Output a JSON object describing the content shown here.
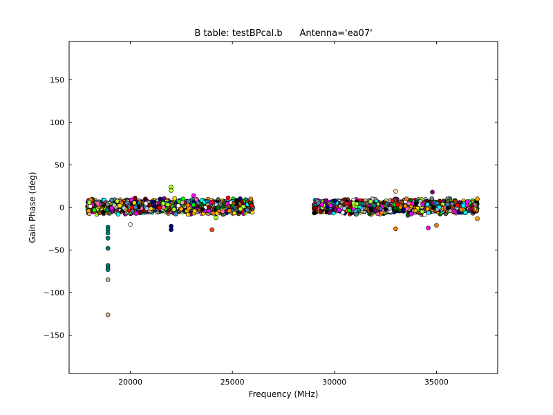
{
  "chart_data": {
    "type": "scatter",
    "title": "B table: testBPcal.b      Antenna='ea07'",
    "xlabel": "Frequency (MHz)",
    "ylabel": "Gain Phase (deg)",
    "xlim": [
      17000,
      38000
    ],
    "ylim": [
      -195,
      195
    ],
    "xticks": [
      20000,
      25000,
      30000,
      35000
    ],
    "xtick_labels": [
      "20000",
      "25000",
      "30000",
      "35000"
    ],
    "yticks": [
      150,
      100,
      50,
      0,
      -50,
      -100,
      -150
    ],
    "ytick_labels": [
      "150",
      "100",
      "50",
      "0",
      "−50",
      "−100",
      "−150"
    ],
    "grid": false,
    "legend": "none",
    "frequency_bands_mhz": [
      [
        17900,
        26000
      ],
      [
        29000,
        37000
      ]
    ],
    "typical_phase_range_deg": [
      -10,
      12
    ],
    "marker": "circle",
    "marker_edge_color": "#000000",
    "outlier_points": [
      {
        "x": 18900,
        "y": -23
      },
      {
        "x": 18900,
        "y": -26
      },
      {
        "x": 18900,
        "y": -30
      },
      {
        "x": 18900,
        "y": -36
      },
      {
        "x": 18900,
        "y": -48
      },
      {
        "x": 18900,
        "y": -68
      },
      {
        "x": 18900,
        "y": -71
      },
      {
        "x": 18900,
        "y": -73
      },
      {
        "x": 18900,
        "y": -85
      },
      {
        "x": 18900,
        "y": -126
      },
      {
        "x": 19400,
        "y": -8
      },
      {
        "x": 20000,
        "y": -20
      },
      {
        "x": 22000,
        "y": 24
      },
      {
        "x": 22000,
        "y": 20
      },
      {
        "x": 22000,
        "y": -26
      },
      {
        "x": 22000,
        "y": -22
      },
      {
        "x": 23100,
        "y": 14
      },
      {
        "x": 24000,
        "y": -26
      },
      {
        "x": 24200,
        "y": -12
      },
      {
        "x": 33000,
        "y": 19
      },
      {
        "x": 33000,
        "y": -25
      },
      {
        "x": 34600,
        "y": -24
      },
      {
        "x": 34800,
        "y": 18
      },
      {
        "x": 35000,
        "y": -21
      },
      {
        "x": 37000,
        "y": 10
      },
      {
        "x": 37000,
        "y": -13
      }
    ],
    "marker_colors": [
      "#008080",
      "#000080",
      "#ff00ff",
      "#00ff00",
      "#ff8000",
      "#d2b48c",
      "#8b4513",
      "#000000",
      "#ffffff",
      "#adff2f",
      "#800080",
      "#ff0000",
      "#4682b4",
      "#ffd700",
      "#00ffff",
      "#556b2f",
      "#ff69b4",
      "#8b0000",
      "#808080",
      "#006400",
      "#ffa500",
      "#b0c4de"
    ],
    "outlier_colors": [
      "#008080",
      "#008080",
      "#008080",
      "#008080",
      "#008080",
      "#008080",
      "#008080",
      "#008080",
      "#d2b48c",
      "#d2b48c",
      "#00ffff",
      "#ffffff",
      "#adff2f",
      "#adff2f",
      "#000080",
      "#000080",
      "#ff00ff",
      "#ff4500",
      "#adff2f",
      "#ffdead",
      "#ff8000",
      "#ff00ff",
      "#800080",
      "#ff8000",
      "#ffa500",
      "#ffa500"
    ]
  }
}
